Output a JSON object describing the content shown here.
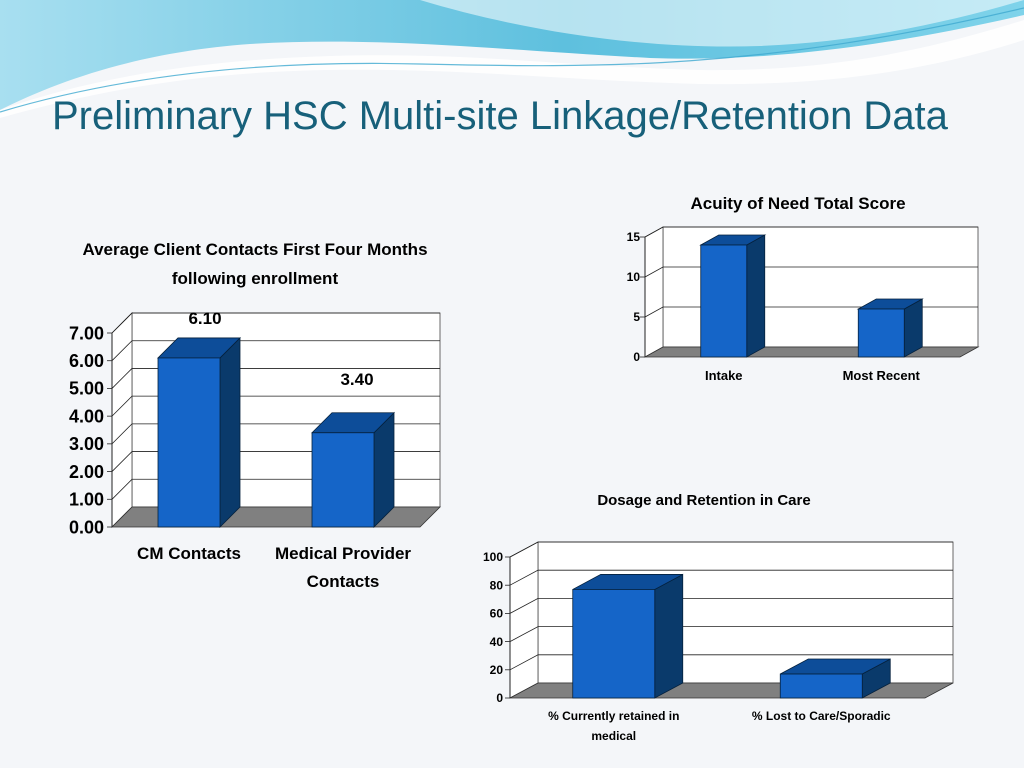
{
  "slide": {
    "title": "Preliminary HSC Multi-site Linkage/Retention Data",
    "colors": {
      "title": "#17607a",
      "bar_front": "#1565c8",
      "bar_top": "#0d4d99",
      "bar_side": "#0a3a6b",
      "floor": "#808080",
      "wave": "#6ec3dc"
    }
  },
  "chart_data": [
    {
      "type": "bar",
      "title_lines": [
        "Average Client Contacts First Four Months",
        "following enrollment"
      ],
      "categories_lines": [
        [
          "CM Contacts"
        ],
        [
          "Medical Provider",
          "Contacts"
        ]
      ],
      "values": [
        6.1,
        3.4
      ],
      "data_labels": [
        "6.10",
        "3.40"
      ],
      "yticks": [
        "0.00",
        "1.00",
        "2.00",
        "3.00",
        "4.00",
        "5.00",
        "6.00",
        "7.00"
      ],
      "ylim": [
        0,
        7
      ],
      "grid": true,
      "style": "3d"
    },
    {
      "type": "bar",
      "title_lines": [
        "Acuity of Need Total Score"
      ],
      "categories_lines": [
        [
          "Intake"
        ],
        [
          "Most Recent"
        ]
      ],
      "values": [
        14,
        6
      ],
      "yticks": [
        "0",
        "5",
        "10",
        "15"
      ],
      "ylim": [
        0,
        15
      ],
      "grid": true,
      "style": "3d"
    },
    {
      "type": "bar",
      "title_lines": [
        "Dosage and Retention in Care"
      ],
      "categories_lines": [
        [
          "% Currently retained in",
          "medical"
        ],
        [
          "% Lost to Care/Sporadic"
        ]
      ],
      "values": [
        77,
        17
      ],
      "yticks": [
        "0",
        "20",
        "40",
        "60",
        "80",
        "100"
      ],
      "ylim": [
        0,
        100
      ],
      "grid": true,
      "style": "3d"
    }
  ]
}
